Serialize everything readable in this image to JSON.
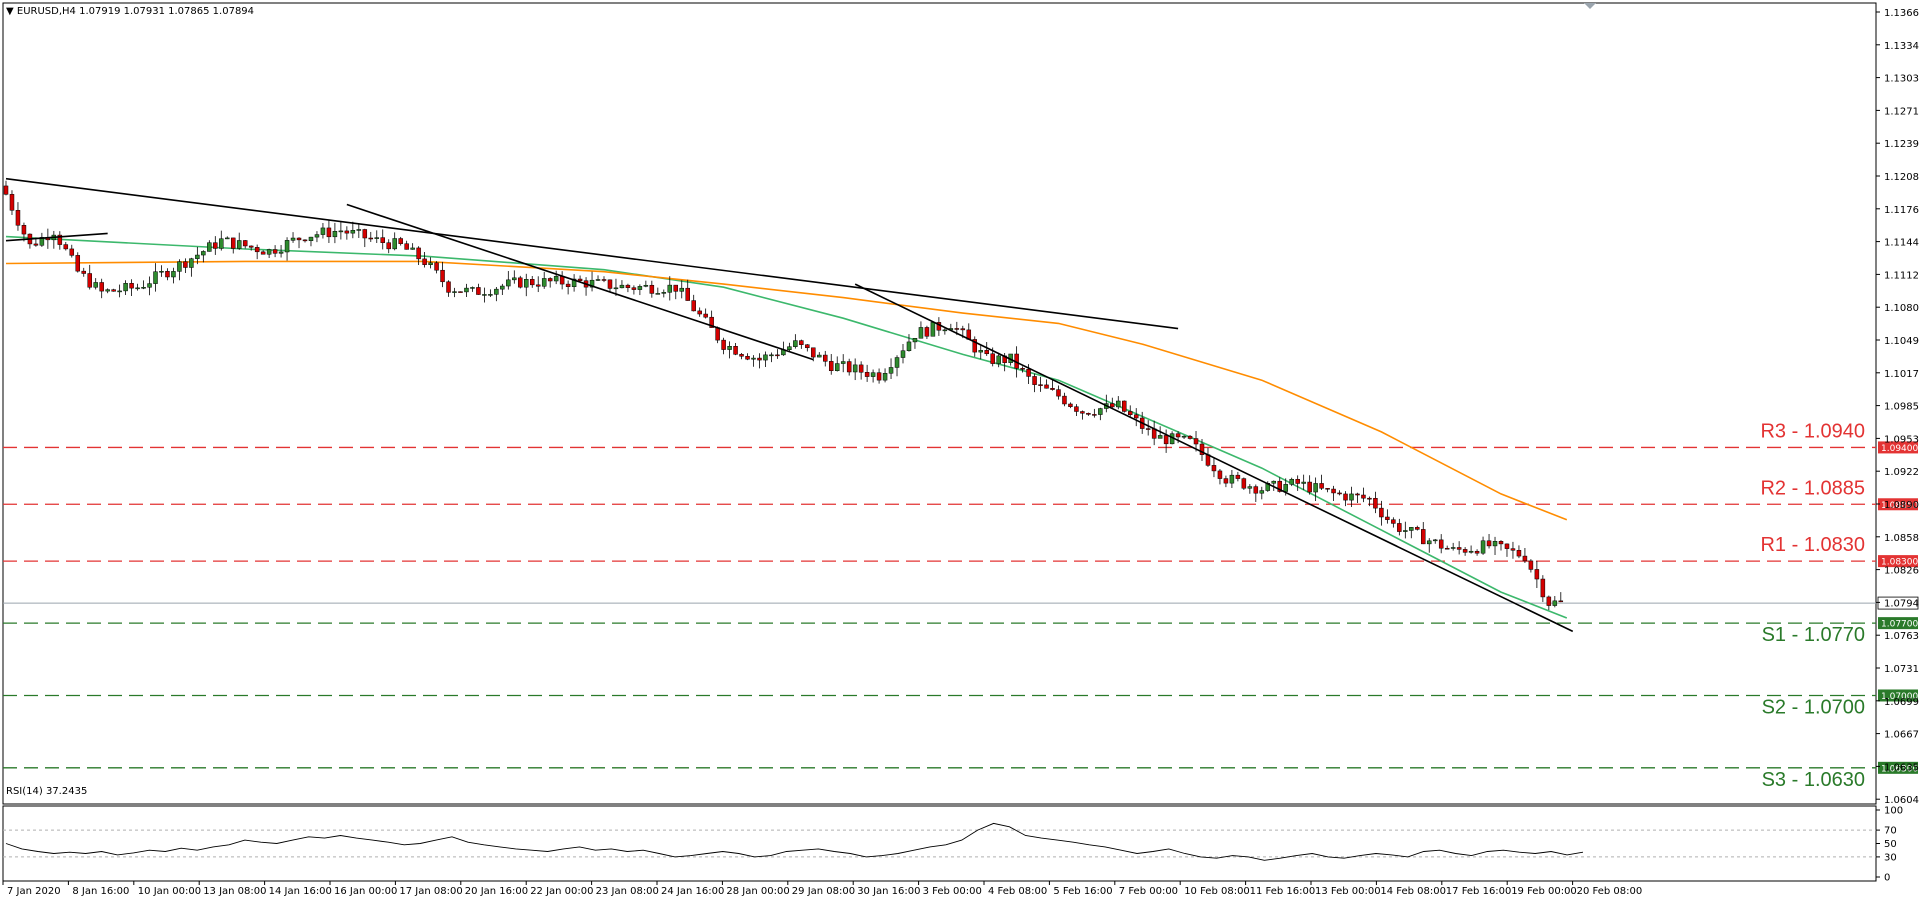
{
  "header": {
    "symbol": "EURUSD,H4",
    "ohlc": "1.07919 1.07931 1.07865 1.07894"
  },
  "rsi_header": "RSI(14) 37.2435",
  "colors": {
    "bull": "#2e8b2e",
    "bear": "#d40000",
    "ma_green": "#3cb86c",
    "ma_orange": "#ff8c00",
    "resistance": "#e33333",
    "support": "#2a7a2a",
    "price_line": "#9aa4ad"
  },
  "chart_data": [
    {
      "type": "candlestick",
      "title": "EURUSD,H4",
      "ylim": [
        1.0595,
        1.137
      ],
      "y_ticks": [
        "1.13665",
        "1.13345",
        "1.13035",
        "1.12710",
        "1.12395",
        "1.12080",
        "1.11760",
        "1.11440",
        "1.11125",
        "1.10805",
        "1.10490",
        "1.10170",
        "1.09855",
        "1.09535",
        "1.09220",
        "1.08900",
        "1.08585",
        "1.08265",
        "1.07945",
        "1.07630",
        "1.07310",
        "1.06990",
        "1.06675",
        "1.06355",
        "1.06040"
      ],
      "x_ticks": [
        "7 Jan 2020",
        "8 Jan 16:00",
        "10 Jan 00:00",
        "13 Jan 08:00",
        "14 Jan 16:00",
        "16 Jan 00:00",
        "17 Jan 08:00",
        "20 Jan 16:00",
        "22 Jan 00:00",
        "23 Jan 08:00",
        "24 Jan 16:00",
        "28 Jan 00:00",
        "29 Jan 08:00",
        "30 Jan 16:00",
        "3 Feb 00:00",
        "4 Feb 08:00",
        "5 Feb 16:00",
        "7 Feb 00:00",
        "10 Feb 08:00",
        "11 Feb 16:00",
        "13 Feb 00:00",
        "14 Feb 08:00",
        "17 Feb 16:00",
        "19 Feb 00:00",
        "20 Feb 08:00"
      ],
      "candle_count": 261,
      "close_path": [
        [
          0,
          1.1185
        ],
        [
          4,
          1.1135
        ],
        [
          8,
          1.115
        ],
        [
          12,
          1.111
        ],
        [
          16,
          1.109
        ],
        [
          22,
          1.1095
        ],
        [
          30,
          1.112
        ],
        [
          36,
          1.114
        ],
        [
          44,
          1.113
        ],
        [
          50,
          1.1145
        ],
        [
          56,
          1.115
        ],
        [
          62,
          1.114
        ],
        [
          66,
          1.1135
        ],
        [
          70,
          1.112
        ],
        [
          74,
          1.1095
        ],
        [
          78,
          1.109
        ],
        [
          86,
          1.11
        ],
        [
          96,
          1.11
        ],
        [
          104,
          1.1095
        ],
        [
          112,
          1.1095
        ],
        [
          120,
          1.104
        ],
        [
          126,
          1.1025
        ],
        [
          132,
          1.104
        ],
        [
          138,
          1.102
        ],
        [
          146,
          1.101
        ],
        [
          152,
          1.105
        ],
        [
          158,
          1.106
        ],
        [
          164,
          1.1025
        ],
        [
          168,
          1.1025
        ],
        [
          172,
          1.1
        ],
        [
          176,
          1.099
        ],
        [
          180,
          1.0975
        ],
        [
          186,
          1.098
        ],
        [
          192,
          1.095
        ],
        [
          198,
          1.0945
        ],
        [
          204,
          1.091
        ],
        [
          210,
          1.09
        ],
        [
          216,
          1.0905
        ],
        [
          222,
          1.0895
        ],
        [
          228,
          1.089
        ],
        [
          232,
          1.0865
        ],
        [
          238,
          1.085
        ],
        [
          242,
          1.084
        ],
        [
          248,
          1.0845
        ],
        [
          254,
          1.0835
        ],
        [
          258,
          1.079
        ],
        [
          260,
          1.07894
        ]
      ],
      "candle_up_threshold": 0.0006,
      "support_levels": [
        {
          "label": "S1 - 1.0770",
          "value": 1.077,
          "badge": "1.07700"
        },
        {
          "label": "S2 - 1.0700",
          "value": 1.07,
          "badge": "1.07000"
        },
        {
          "label": "S3 - 1.0630",
          "value": 1.063,
          "badge": "1.06300"
        }
      ],
      "resistance_levels": [
        {
          "label": "R1 - 1.0830",
          "value": 1.083,
          "badge": "1.08300"
        },
        {
          "label": "R2 - 1.0885",
          "value": 1.0885,
          "badge": "1.08850"
        },
        {
          "label": "R3 - 1.0940",
          "value": 1.094,
          "badge": "1.09400"
        }
      ],
      "current_price": {
        "value": 1.07894,
        "badge": "1.07894"
      },
      "moving_averages": [
        {
          "color": "ma_green",
          "points": [
            [
              0,
              1.1144
            ],
            [
              40,
              1.1132
            ],
            [
              70,
              1.1125
            ],
            [
              100,
              1.1112
            ],
            [
              120,
              1.1095
            ],
            [
              140,
              1.1065
            ],
            [
              160,
              1.103
            ],
            [
              176,
              1.1005
            ],
            [
              190,
              1.097
            ],
            [
              210,
              1.092
            ],
            [
              230,
              1.086
            ],
            [
              250,
              1.08
            ],
            [
              261,
              1.0775
            ]
          ]
        },
        {
          "color": "ma_orange",
          "points": [
            [
              0,
              1.1118
            ],
            [
              40,
              1.112
            ],
            [
              70,
              1.112
            ],
            [
              100,
              1.111
            ],
            [
              120,
              1.1098
            ],
            [
              140,
              1.1085
            ],
            [
              160,
              1.107
            ],
            [
              176,
              1.106
            ],
            [
              190,
              1.104
            ],
            [
              210,
              1.1005
            ],
            [
              230,
              1.0955
            ],
            [
              250,
              1.0895
            ],
            [
              261,
              1.087
            ]
          ]
        }
      ],
      "trendlines": [
        {
          "from": [
            0,
            1.12
          ],
          "to": [
            196,
            1.1055
          ]
        },
        {
          "from": [
            57,
            1.1175
          ],
          "to": [
            135,
            1.1025
          ]
        },
        {
          "from": [
            142,
            1.1098
          ],
          "to": [
            262,
            1.0762
          ]
        },
        {
          "from": [
            0,
            1.114
          ],
          "to": [
            17,
            1.1147
          ]
        }
      ]
    },
    {
      "type": "line",
      "title": "RSI(14) 37.2435",
      "ylim": [
        0,
        100
      ],
      "y_ticks": [
        "100",
        "70",
        "50",
        "30",
        "0"
      ],
      "levels": [
        30,
        70
      ],
      "values": [
        50,
        42,
        38,
        35,
        37,
        35,
        38,
        33,
        36,
        40,
        38,
        43,
        40,
        45,
        48,
        55,
        52,
        50,
        55,
        60,
        58,
        62,
        58,
        55,
        52,
        48,
        50,
        55,
        60,
        52,
        48,
        45,
        42,
        40,
        38,
        42,
        45,
        40,
        42,
        38,
        40,
        35,
        30,
        32,
        35,
        38,
        35,
        30,
        32,
        38,
        40,
        42,
        38,
        35,
        30,
        32,
        35,
        40,
        45,
        48,
        55,
        70,
        80,
        75,
        62,
        58,
        55,
        52,
        48,
        45,
        40,
        35,
        38,
        42,
        35,
        30,
        28,
        32,
        30,
        25,
        28,
        32,
        35,
        30,
        28,
        32,
        35,
        33,
        30,
        38,
        40,
        35,
        32,
        38,
        40,
        37,
        35,
        38,
        33,
        37
      ]
    }
  ]
}
